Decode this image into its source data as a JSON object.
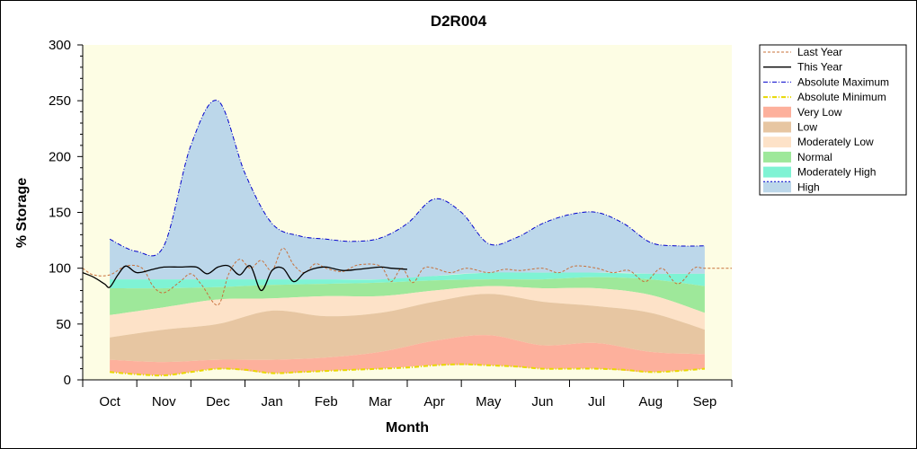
{
  "chart_data": {
    "type": "area",
    "title": "D2R004",
    "xlabel": "Month",
    "ylabel": "% Storage",
    "ylim": [
      0,
      300
    ],
    "yticks": [
      0,
      50,
      100,
      150,
      200,
      250,
      300
    ],
    "x_range": [
      -0.5,
      11.5
    ],
    "categories": [
      "Oct",
      "Nov",
      "Dec",
      "Jan",
      "Feb",
      "Mar",
      "Apr",
      "May",
      "Jun",
      "Jul",
      "Aug",
      "Sep"
    ],
    "legend_position": "right",
    "grid": false,
    "plot_background": "#fdfde4",
    "bands": [
      {
        "name": "High",
        "color": "#bcd7ea",
        "x": [
          0,
          0.5,
          1,
          1.5,
          2,
          2.5,
          3,
          3.5,
          4,
          4.5,
          5,
          5.5,
          6,
          6.5,
          7,
          7.5,
          8,
          8.5,
          9,
          9.5,
          10,
          10.5,
          11
        ],
        "lower": [
          90,
          90,
          90,
          90,
          90,
          90,
          90,
          90,
          90,
          90,
          90,
          90,
          93,
          95,
          96,
          96,
          96,
          96,
          96,
          96,
          95,
          95,
          95
        ],
        "upper": [
          126,
          115,
          120,
          210,
          250,
          185,
          140,
          129,
          126,
          124,
          127,
          140,
          162,
          150,
          122,
          127,
          140,
          148,
          150,
          140,
          123,
          120,
          120
        ]
      },
      {
        "name": "Moderately High",
        "color": "#7ff3d4",
        "x": [
          0,
          1,
          2,
          3,
          4,
          5,
          6,
          7,
          8,
          9,
          10,
          11
        ],
        "lower": [
          82,
          82,
          83,
          85,
          86,
          87,
          89,
          90,
          90,
          92,
          90,
          84
        ],
        "upper": [
          90,
          90,
          90,
          90,
          90,
          90,
          93,
          96,
          96,
          96,
          95,
          95
        ]
      },
      {
        "name": "Normal",
        "color": "#9ee89a",
        "x": [
          0,
          1,
          2,
          3,
          4,
          5,
          6,
          7,
          8,
          9,
          10,
          11
        ],
        "lower": [
          58,
          65,
          72,
          73,
          75,
          75,
          80,
          84,
          82,
          82,
          76,
          60
        ],
        "upper": [
          82,
          82,
          83,
          85,
          86,
          87,
          89,
          90,
          90,
          92,
          90,
          84
        ]
      },
      {
        "name": "Moderately Low",
        "color": "#fde2c8",
        "x": [
          0,
          1,
          2,
          3,
          4,
          5,
          6,
          7,
          8,
          9,
          10,
          11
        ],
        "lower": [
          38,
          45,
          50,
          62,
          57,
          60,
          70,
          77,
          70,
          66,
          60,
          45
        ],
        "upper": [
          58,
          65,
          72,
          73,
          75,
          75,
          80,
          84,
          82,
          82,
          76,
          60
        ]
      },
      {
        "name": "Low",
        "color": "#e7c6a2",
        "x": [
          0,
          1,
          2,
          3,
          4,
          5,
          6,
          7,
          8,
          9,
          10,
          11
        ],
        "lower": [
          18,
          16,
          18,
          18,
          20,
          25,
          35,
          40,
          31,
          33,
          25,
          23
        ],
        "upper": [
          38,
          45,
          50,
          62,
          57,
          60,
          70,
          77,
          70,
          66,
          60,
          45
        ]
      },
      {
        "name": "Very Low",
        "color": "#fdb09c",
        "x": [
          0,
          1,
          2,
          3,
          4,
          5,
          6,
          7,
          8,
          9,
          10,
          11
        ],
        "lower": [
          7,
          4,
          10,
          6,
          8,
          10,
          13,
          13,
          10,
          10,
          7,
          10
        ],
        "upper": [
          18,
          16,
          18,
          18,
          20,
          25,
          35,
          40,
          31,
          33,
          25,
          23
        ]
      }
    ],
    "series": [
      {
        "name": "Last Year",
        "color": "#c8703a",
        "style": "dashed",
        "width": 1,
        "x": [
          -0.5,
          -0.3,
          0,
          0.3,
          0.6,
          0.8,
          1,
          1.3,
          1.5,
          1.7,
          2,
          2.2,
          2.4,
          2.6,
          2.8,
          3,
          3.2,
          3.4,
          3.6,
          3.8,
          4,
          4.3,
          4.6,
          5,
          5.2,
          5.4,
          5.6,
          5.8,
          6,
          6.3,
          6.6,
          7,
          7.3,
          7.6,
          8,
          8.3,
          8.6,
          9,
          9.3,
          9.6,
          9.9,
          10.2,
          10.5,
          10.8,
          11,
          11.5
        ],
        "y": [
          100,
          94,
          94,
          102,
          100,
          84,
          78,
          88,
          95,
          85,
          67,
          95,
          108,
          100,
          107,
          98,
          118,
          103,
          96,
          104,
          100,
          97,
          103,
          102,
          88,
          100,
          87,
          100,
          100,
          96,
          100,
          96,
          99,
          98,
          100,
          96,
          102,
          100,
          96,
          98,
          88,
          100,
          86,
          100,
          100,
          100
        ]
      },
      {
        "name": "This Year",
        "color": "#000000",
        "style": "solid",
        "width": 1.3,
        "x": [
          -0.5,
          -0.3,
          -0.1,
          0,
          0.15,
          0.3,
          0.5,
          0.8,
          1,
          1.3,
          1.6,
          1.8,
          2,
          2.2,
          2.4,
          2.6,
          2.8,
          3,
          3.2,
          3.4,
          3.6,
          3.8,
          4,
          4.3,
          4.6,
          5,
          5.2,
          5.5
        ],
        "y": [
          96,
          92,
          86,
          83,
          94,
          102,
          96,
          99,
          101,
          101,
          101,
          95,
          101,
          102,
          94,
          102,
          80,
          98,
          100,
          88,
          96,
          100,
          101,
          98,
          99,
          101,
          100,
          99
        ]
      },
      {
        "name": "Absolute Maximum",
        "color": "#0000cc",
        "style": "dashdot",
        "width": 1,
        "x": [
          0,
          0.5,
          1,
          1.5,
          2,
          2.5,
          3,
          3.5,
          4,
          4.5,
          5,
          5.5,
          6,
          6.5,
          7,
          7.5,
          8,
          8.5,
          9,
          9.5,
          10,
          10.5,
          11
        ],
        "y": [
          126,
          115,
          120,
          210,
          250,
          185,
          140,
          129,
          126,
          124,
          127,
          140,
          162,
          150,
          122,
          127,
          140,
          148,
          150,
          140,
          123,
          120,
          120
        ]
      },
      {
        "name": "Absolute Minimum",
        "color": "#e8d800",
        "style": "dashdot",
        "width": 2,
        "x": [
          0,
          0.5,
          1,
          1.5,
          2,
          2.5,
          3,
          3.5,
          4,
          4.5,
          5,
          5.5,
          6,
          6.5,
          7,
          7.5,
          8,
          8.5,
          9,
          9.5,
          10,
          10.5,
          11
        ],
        "y": [
          7,
          5,
          4,
          7,
          10,
          9,
          6,
          7,
          8,
          9,
          10,
          11,
          13,
          14,
          13,
          12,
          10,
          10,
          10,
          9,
          7,
          8,
          10
        ]
      }
    ],
    "legend": [
      {
        "label": "Last Year",
        "kind": "line",
        "color": "#c8703a",
        "style": "dashed"
      },
      {
        "label": "This Year",
        "kind": "line",
        "color": "#000000",
        "style": "solid"
      },
      {
        "label": "Absolute Maximum",
        "kind": "line",
        "color": "#0000cc",
        "style": "dashdot"
      },
      {
        "label": "Absolute Minimum",
        "kind": "line",
        "color": "#e8d800",
        "style": "dashdot"
      },
      {
        "label": "Very Low",
        "kind": "band",
        "color": "#fdb09c"
      },
      {
        "label": "Low",
        "kind": "band",
        "color": "#e7c6a2"
      },
      {
        "label": "Moderately Low",
        "kind": "band",
        "color": "#fde2c8"
      },
      {
        "label": "Normal",
        "kind": "band",
        "color": "#9ee89a"
      },
      {
        "label": "Moderately High",
        "kind": "band",
        "color": "#7ff3d4"
      },
      {
        "label": "High",
        "kind": "band-dotted",
        "color": "#bcd7ea"
      }
    ]
  }
}
